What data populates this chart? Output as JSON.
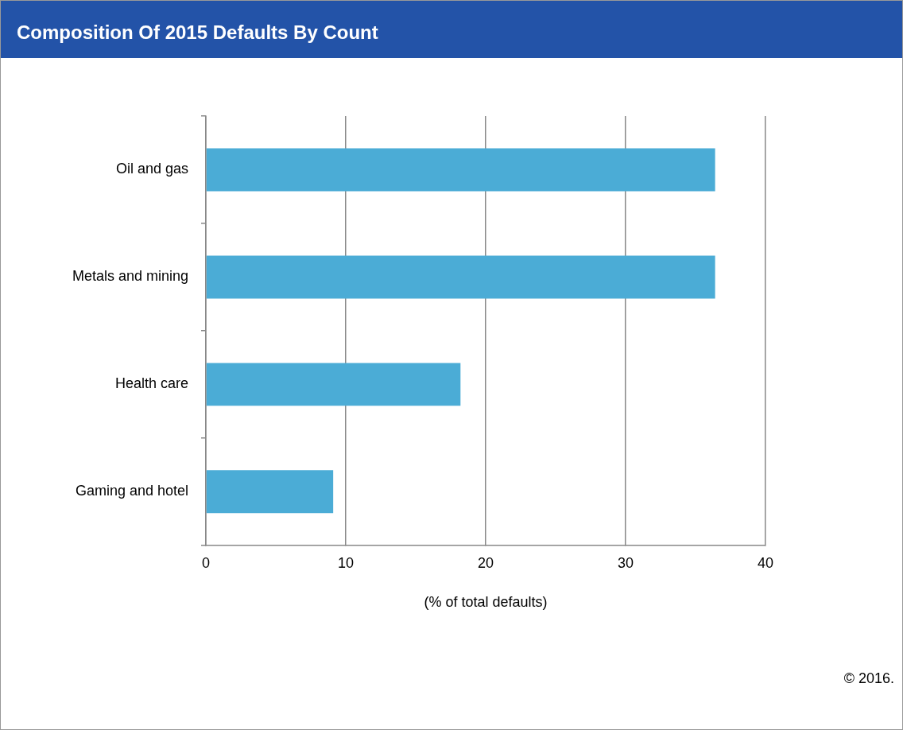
{
  "chart_data": {
    "type": "bar",
    "orientation": "horizontal",
    "title": "Composition Of 2015 Defaults By Count",
    "categories": [
      "Oil and gas",
      "Metals and mining",
      "Health care",
      "Gaming and hotel"
    ],
    "values": [
      36.4,
      36.4,
      18.2,
      9.1
    ],
    "color": "#4bacd6",
    "xlim": [
      0,
      40
    ],
    "xticks": [
      0,
      10,
      20,
      30,
      40
    ],
    "xlabel": "(% of total defaults)",
    "grid": "x",
    "annotations": [
      "© 2016."
    ]
  }
}
